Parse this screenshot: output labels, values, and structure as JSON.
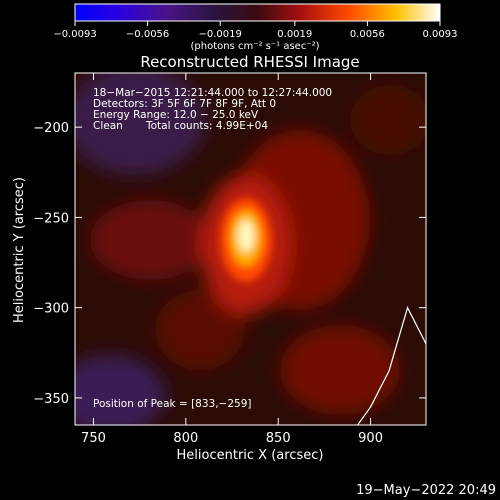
{
  "chart_data": {
    "type": "heatmap",
    "title": "Reconstructed RHESSI Image",
    "xlabel": "Heliocentric X (arcsec)",
    "ylabel": "Heliocentric Y (arcsec)",
    "xlim": [
      740,
      930
    ],
    "ylim": [
      -365,
      -170
    ],
    "x_ticks": [
      "750",
      "800",
      "850",
      "900"
    ],
    "x_tick_values": [
      750,
      800,
      850,
      900
    ],
    "y_ticks": [
      "−200",
      "−250",
      "−300",
      "−350"
    ],
    "y_tick_values": [
      -200,
      -250,
      -300,
      -350
    ],
    "colorbar": {
      "label": "(photons cm⁻² s⁻¹ asec⁻²)",
      "range": [
        -0.0093,
        0.0093
      ],
      "ticks": [
        "−0.0093",
        "−0.0056",
        "−0.0019",
        "0.0019",
        "0.0056",
        "0.0093"
      ],
      "tick_values": [
        -0.0093,
        -0.0056,
        -0.0019,
        0.0019,
        0.0056,
        0.0093
      ]
    },
    "peak": [
      833,
      -259
    ],
    "info_lines": [
      "18−Mar−2015 12:21:44.000 to 12:27:44.000",
      "Detectors: 3F 5F 6F 7F 8F 9F, Att 0",
      "Energy Range: 12.0 − 25.0 keV"
    ],
    "method": "Clean",
    "total_counts": "Total counts: 4.99E+04",
    "peak_label": "Position of Peak = [833,−259]",
    "limb_curve": [
      [
        930,
        -320
      ],
      [
        920,
        -300
      ],
      [
        910,
        -335
      ],
      [
        900,
        -355
      ],
      [
        893,
        -365
      ]
    ]
  },
  "footer_timestamp": "19−May−2022 20:49"
}
